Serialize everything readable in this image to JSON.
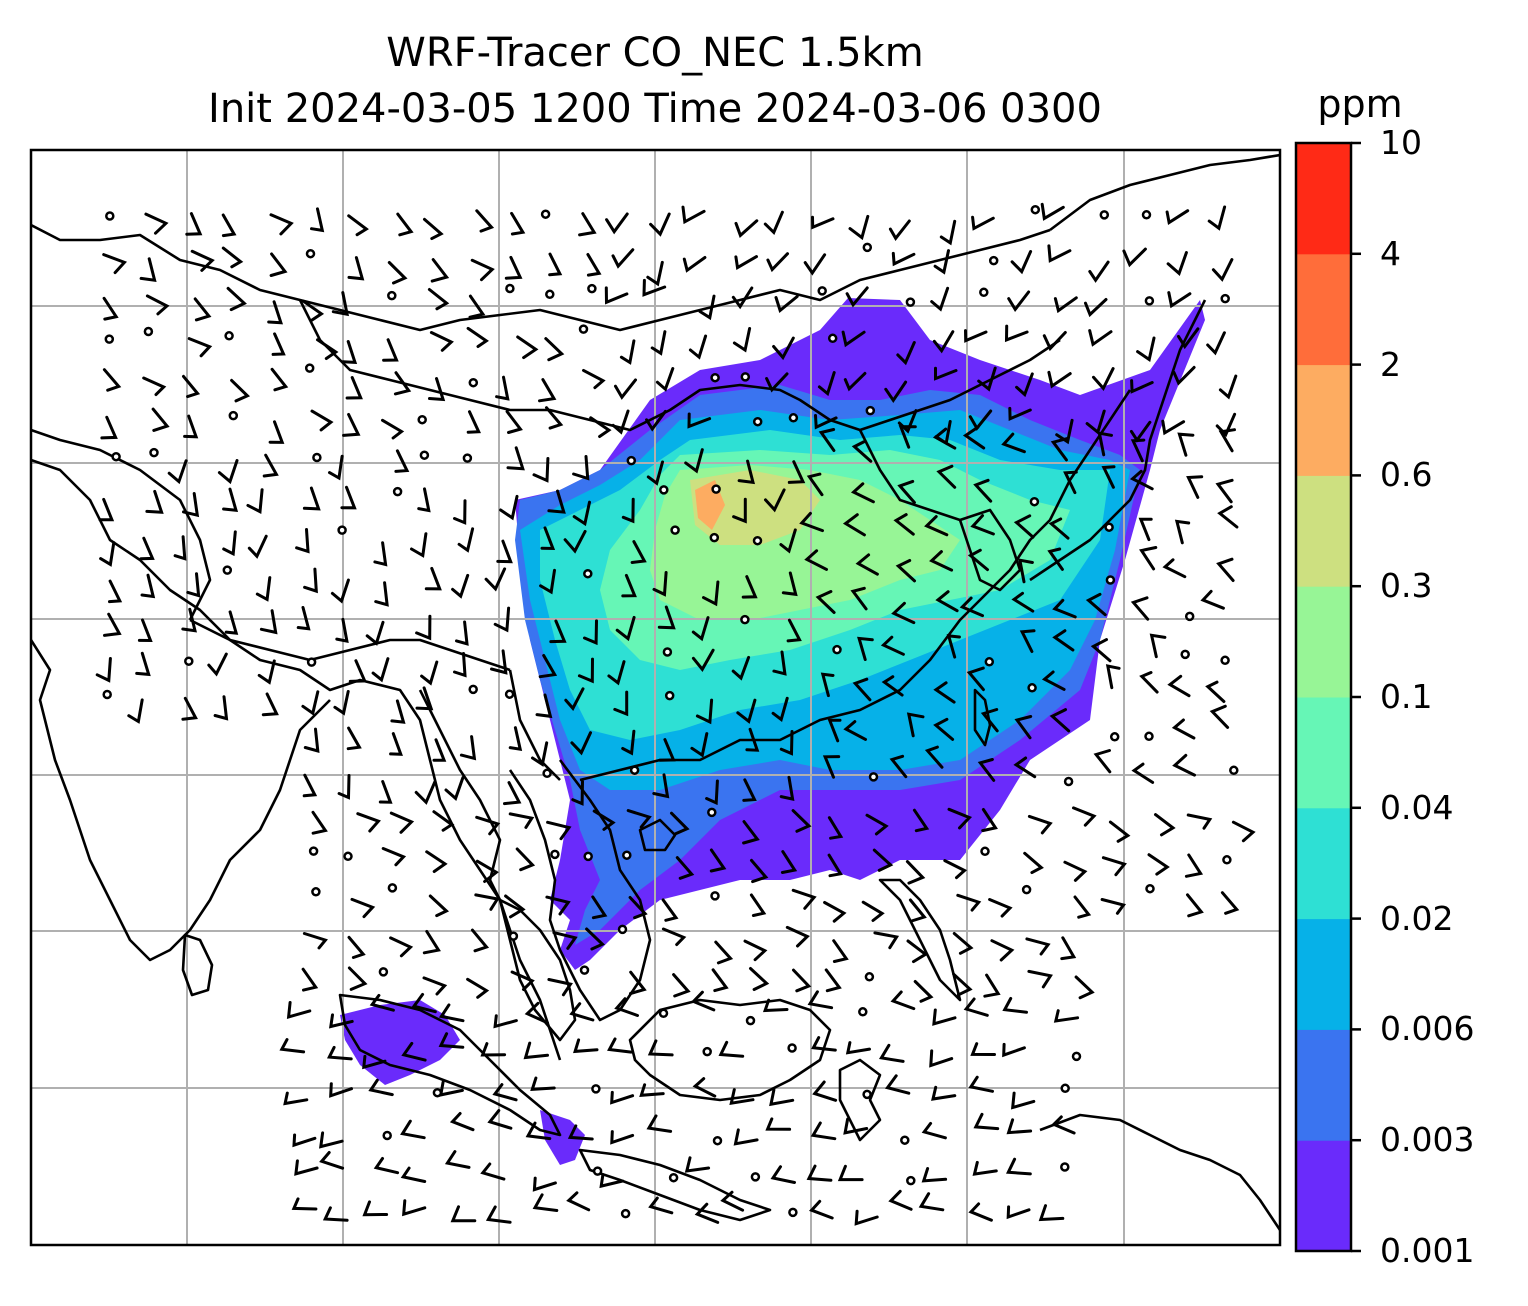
{
  "title": {
    "line1": "WRF-Tracer CO_NEC 1.5km",
    "line2": "Init 2024-03-05 1200 Time 2024-03-06 0300"
  },
  "colorbar": {
    "unit": "ppm",
    "levels": [
      "0.001",
      "0.003",
      "0.006",
      "0.02",
      "0.04",
      "0.1",
      "0.3",
      "0.6",
      "2",
      "4",
      "10"
    ],
    "colors": [
      "#6a2bfb",
      "#3a74f0",
      "#06b1e8",
      "#2ee0d4",
      "#66f6b6",
      "#97f596",
      "#cde080",
      "#fdac61",
      "#ff6d3a",
      "#ff2a16"
    ]
  },
  "map": {
    "background": "#ffffff",
    "gridline_color": "#b0b0b0",
    "coastline_color": "#000000",
    "barb_color": "#000000"
  }
}
